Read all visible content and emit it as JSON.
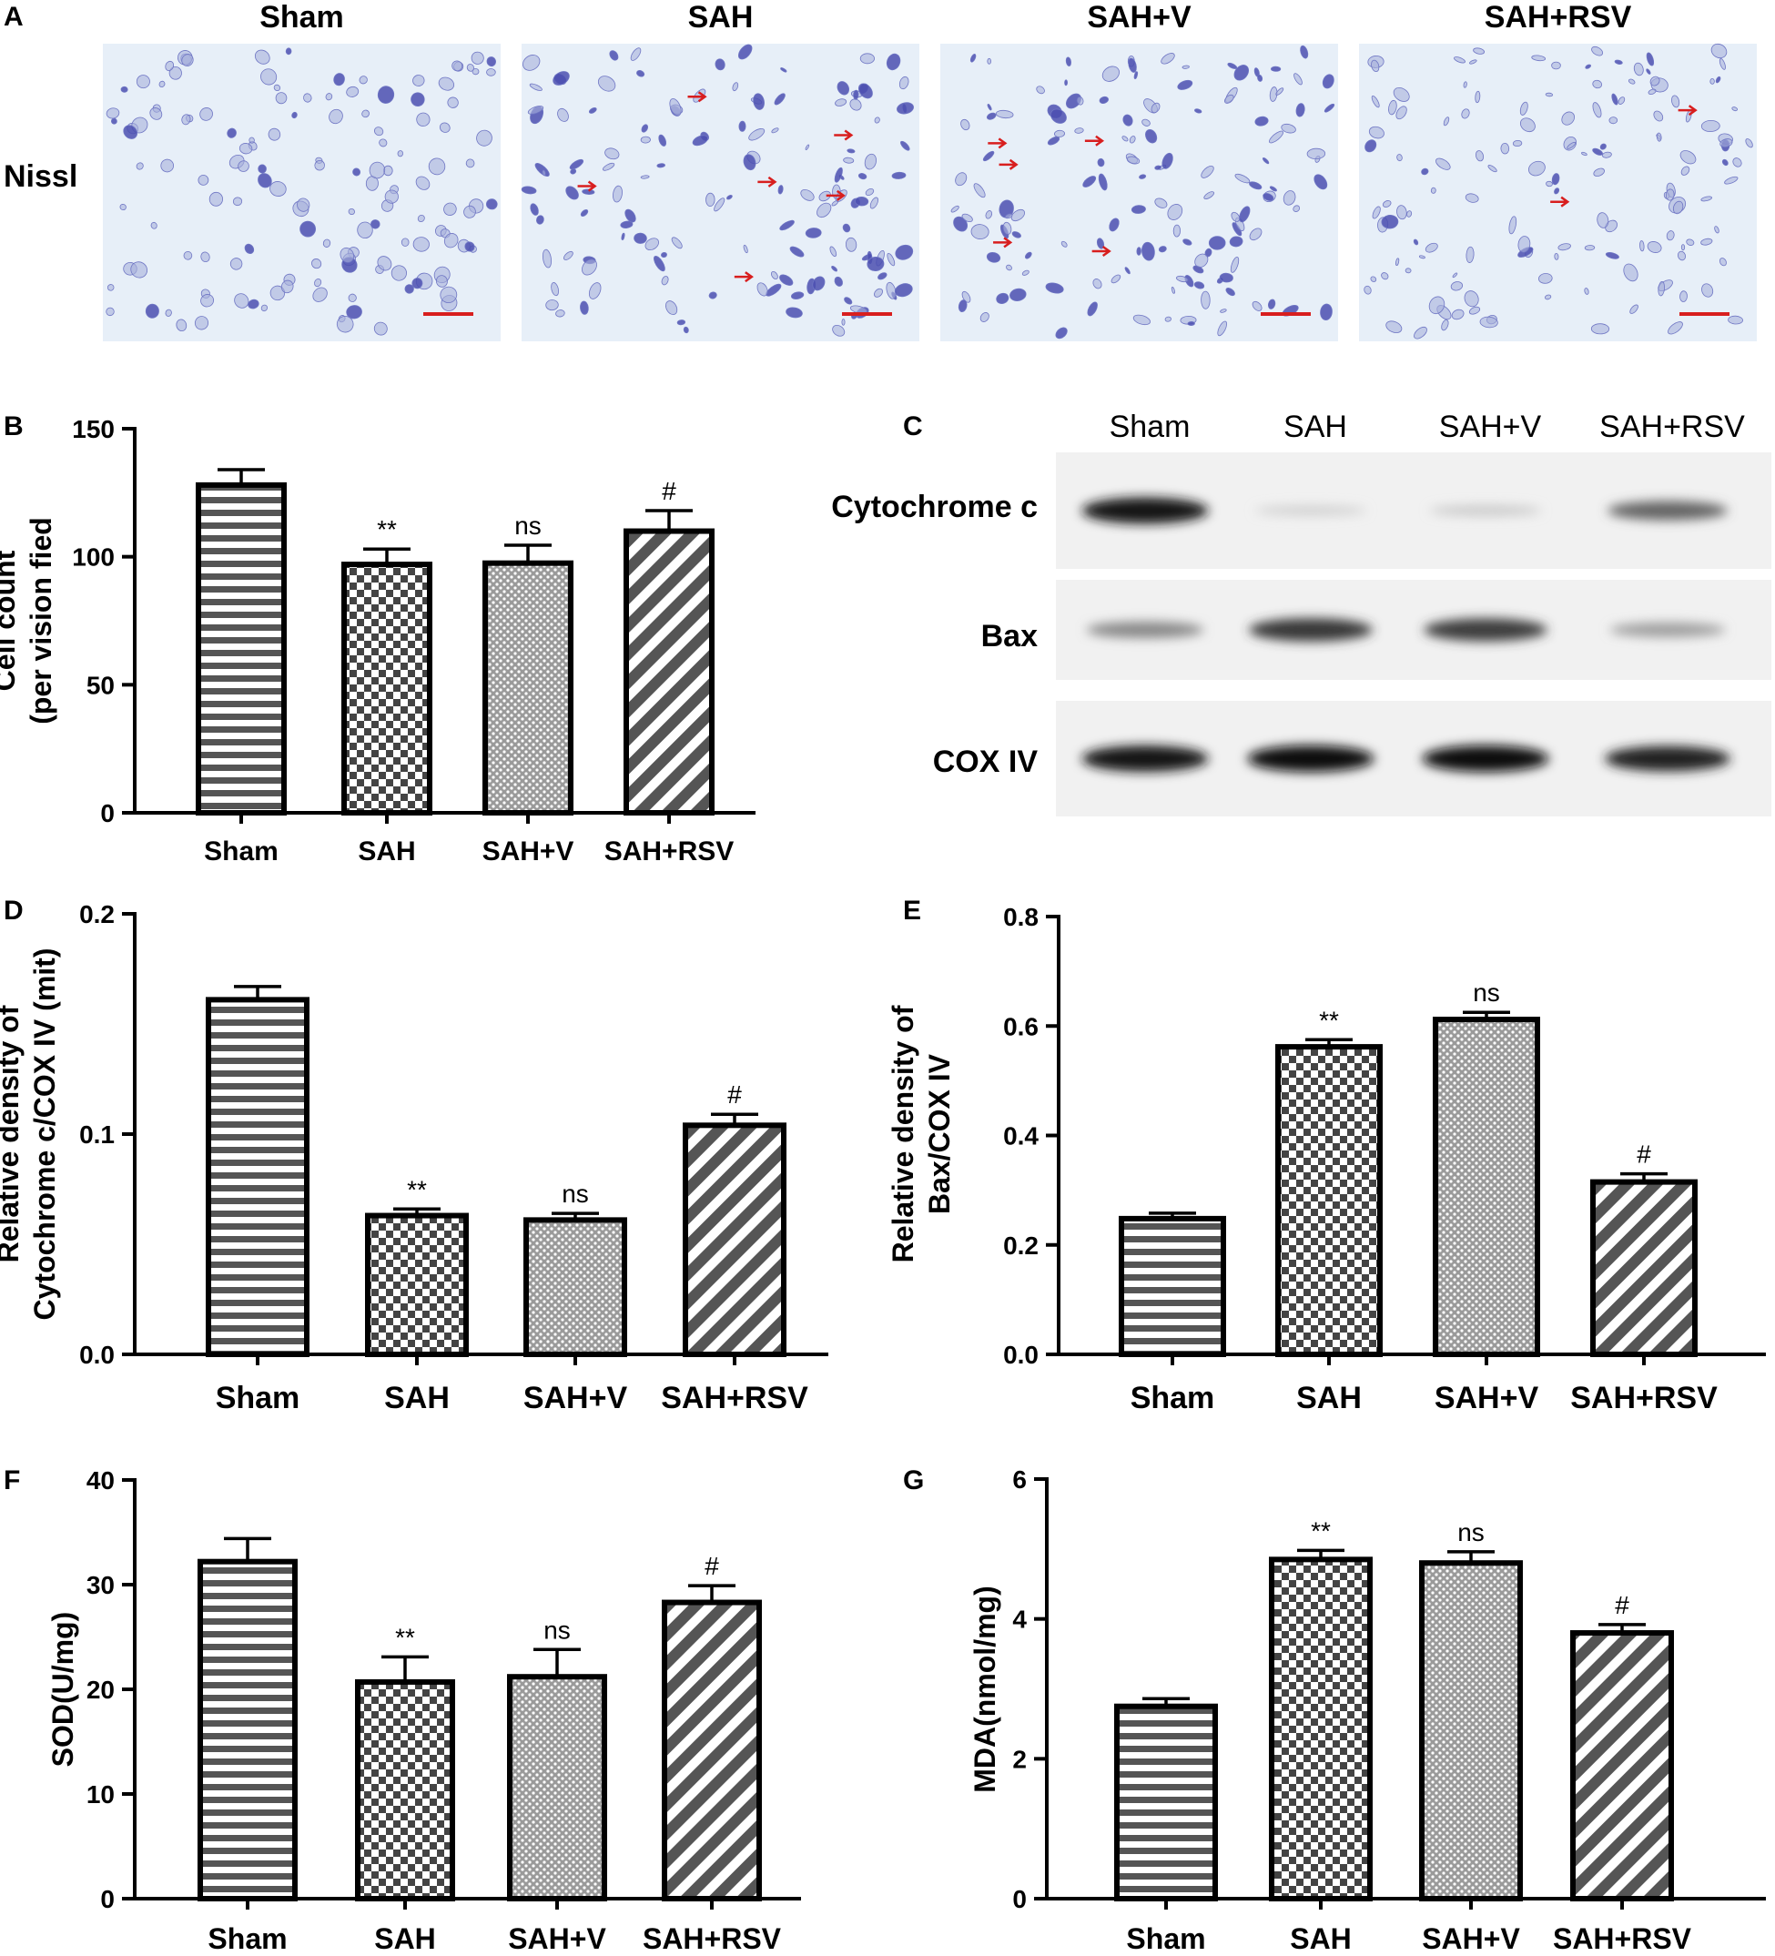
{
  "panel_a": {
    "letter": "A",
    "row_label": "Nissl",
    "groups": [
      "Sham",
      "SAH",
      "SAH+V",
      "SAH+RSV"
    ],
    "arrow_color": "#d81e1e",
    "arrow_counts": [
      0,
      6,
      5,
      2
    ]
  },
  "panel_c": {
    "letter": "C",
    "lanes": [
      "Sham",
      "SAH",
      "SAH+V",
      "SAH+RSV"
    ],
    "blots": [
      {
        "label": "Cytochrome c",
        "intensity": [
          0.95,
          0.12,
          0.15,
          0.6
        ]
      },
      {
        "label": "Bax",
        "intensity": [
          0.45,
          0.8,
          0.78,
          0.35
        ]
      },
      {
        "label": "COX IV",
        "intensity": [
          0.95,
          0.97,
          0.97,
          0.9
        ]
      }
    ]
  },
  "patterns": [
    "horizontal-stripes",
    "checkerboard",
    "dotted",
    "diagonal-stripes"
  ],
  "chart_data": [
    {
      "id": "B",
      "type": "bar",
      "letter": "B",
      "categories": [
        "Sham",
        "SAH",
        "SAH+V",
        "SAH+RSV"
      ],
      "values": [
        128,
        97,
        97.5,
        110
      ],
      "errors": [
        6,
        6,
        7,
        8
      ],
      "annotations": [
        "",
        "**",
        "ns",
        "#"
      ],
      "ylabel": [
        "Cell count",
        "(per vision fied"
      ],
      "ylim": [
        0,
        150
      ],
      "yticks": [
        "0",
        "50",
        "100",
        "150"
      ]
    },
    {
      "id": "D",
      "type": "bar",
      "letter": "D",
      "categories": [
        "Sham",
        "SAH",
        "SAH+V",
        "SAH+RSV"
      ],
      "values": [
        0.161,
        0.063,
        0.061,
        0.104
      ],
      "errors": [
        0.006,
        0.003,
        0.003,
        0.005
      ],
      "annotations": [
        "",
        "**",
        "ns",
        "#"
      ],
      "ylabel": [
        "Relative density of",
        "Cytochrome c/COX IV (mit)"
      ],
      "ylim": [
        0,
        0.2
      ],
      "yticks": [
        "0.0",
        "0.1",
        "0.2"
      ]
    },
    {
      "id": "E",
      "type": "bar",
      "letter": "E",
      "categories": [
        "Sham",
        "SAH",
        "SAH+V",
        "SAH+RSV"
      ],
      "values": [
        0.248,
        0.562,
        0.612,
        0.315
      ],
      "errors": [
        0.01,
        0.013,
        0.013,
        0.015
      ],
      "annotations": [
        "",
        "**",
        "ns",
        "#"
      ],
      "ylabel": [
        "Relative density of",
        "Bax/COX IV"
      ],
      "ylim": [
        0,
        0.8
      ],
      "yticks": [
        "0.0",
        "0.2",
        "0.4",
        "0.6",
        "0.8"
      ]
    },
    {
      "id": "F",
      "type": "bar",
      "letter": "F",
      "categories": [
        "Sham",
        "SAH",
        "SAH+V",
        "SAH+RSV"
      ],
      "values": [
        32.2,
        20.7,
        21.2,
        28.3
      ],
      "errors": [
        2.2,
        2.4,
        2.6,
        1.6
      ],
      "annotations": [
        "",
        "**",
        "ns",
        "#"
      ],
      "ylabel": [
        "SOD(U/mg)"
      ],
      "ylim": [
        0,
        40
      ],
      "yticks": [
        "0",
        "10",
        "20",
        "30",
        "40"
      ]
    },
    {
      "id": "G",
      "type": "bar",
      "letter": "G",
      "categories": [
        "Sham",
        "SAH",
        "SAH+V",
        "SAH+RSV"
      ],
      "values": [
        2.75,
        4.85,
        4.8,
        3.8
      ],
      "errors": [
        0.11,
        0.13,
        0.16,
        0.12
      ],
      "annotations": [
        "",
        "**",
        "ns",
        "#"
      ],
      "ylabel": [
        "MDA(nmol/mg)"
      ],
      "ylim": [
        0,
        6
      ],
      "yticks": [
        "0",
        "2",
        "4",
        "6"
      ]
    }
  ]
}
